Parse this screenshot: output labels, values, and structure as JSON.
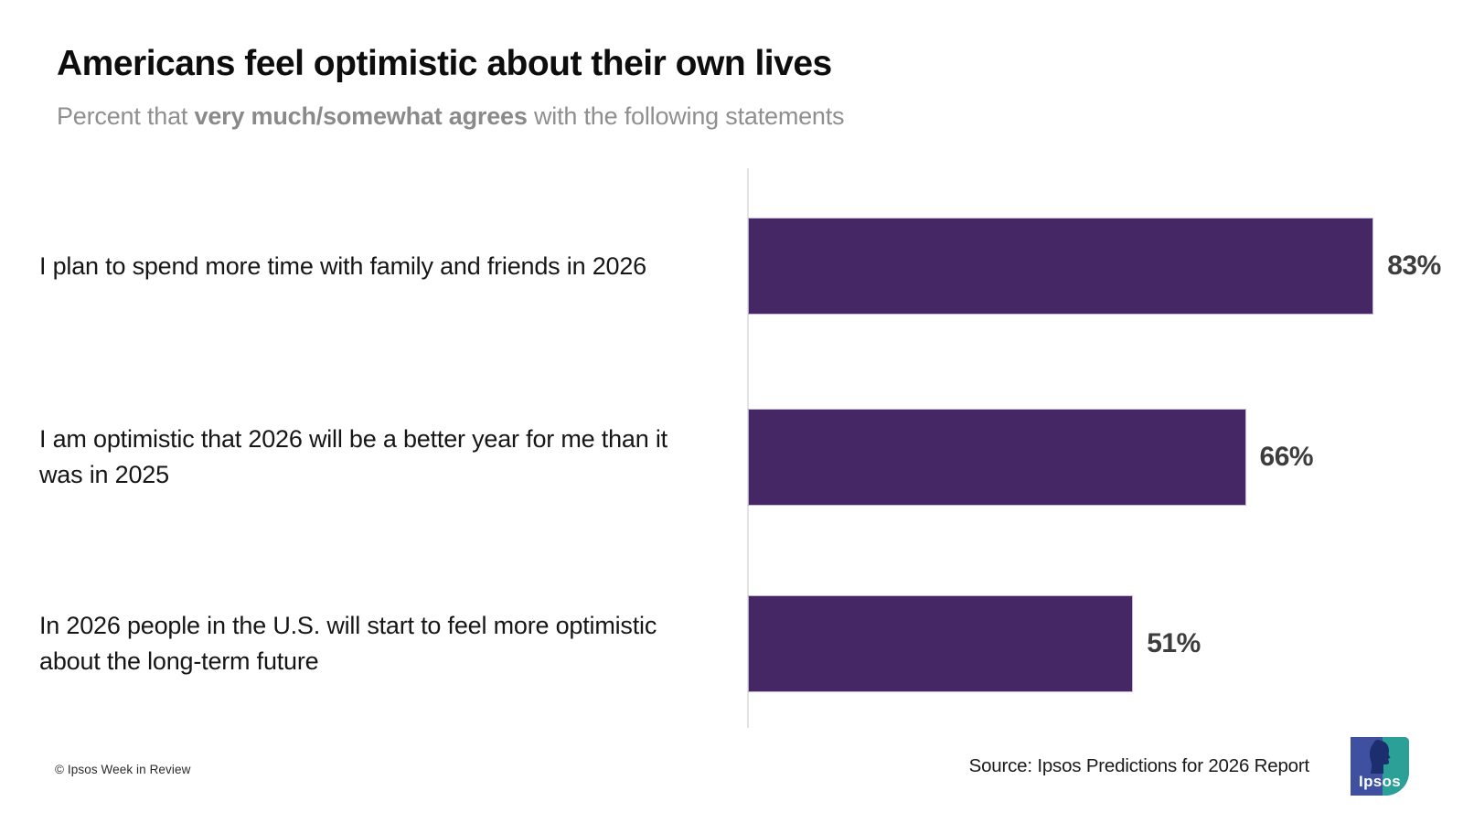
{
  "title": "Americans feel optimistic about their own lives",
  "subtitle": {
    "prefix": "Percent that ",
    "bold": "very much/somewhat agrees",
    "suffix": " with the following statements"
  },
  "chart_data": {
    "type": "bar",
    "orientation": "horizontal",
    "categories": [
      "I plan to spend more time with family and friends in 2026",
      "I am optimistic that 2026 will be a better year for me than it was in 2025",
      "In 2026 people in the U.S. will start to feel more optimistic about the long-term future"
    ],
    "values": [
      83,
      66,
      51
    ],
    "value_labels": [
      "83%",
      "66%",
      "51%"
    ],
    "xlim": [
      0,
      100
    ],
    "bar_color": "#452766",
    "value_label_color": "#3d3d3d",
    "axis_line_color": "#e3e3e3",
    "grid": false,
    "legend": false
  },
  "footer": {
    "copyright": "© Ipsos Week in Review",
    "source": "Source: Ipsos Predictions for 2026 Report"
  },
  "logo": {
    "wordmark": "Ipsos",
    "blue": "#3e509f",
    "teal": "#2aa096",
    "silhouette_color": "#1c2e6e"
  }
}
